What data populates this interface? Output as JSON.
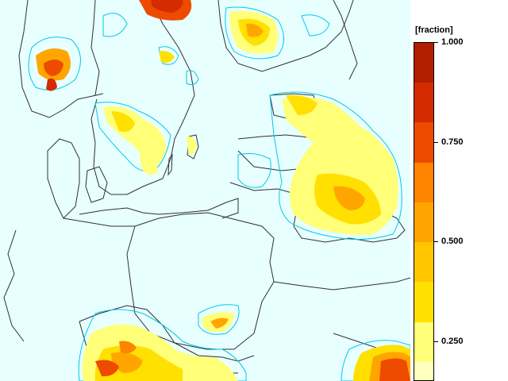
{
  "legend": {
    "unit_label": "[fraction]",
    "ticks": [
      {
        "label": "1.000",
        "value": 1.0
      },
      {
        "label": "0.750",
        "value": 0.75
      },
      {
        "label": "0.500",
        "value": 0.5
      },
      {
        "label": "0.250",
        "value": 0.25
      }
    ],
    "range": [
      0.15,
      1.0
    ],
    "classes": [
      {
        "from": 0.9,
        "to": 1.0,
        "color": "#b21f00"
      },
      {
        "from": 0.8,
        "to": 0.9,
        "color": "#d42c00"
      },
      {
        "from": 0.7,
        "to": 0.8,
        "color": "#ee4a00"
      },
      {
        "from": 0.6,
        "to": 0.7,
        "color": "#ff8400"
      },
      {
        "from": 0.5,
        "to": 0.6,
        "color": "#ffa500"
      },
      {
        "from": 0.4,
        "to": 0.5,
        "color": "#ffc600"
      },
      {
        "from": 0.3,
        "to": 0.4,
        "color": "#ffe000"
      },
      {
        "from": 0.2,
        "to": 0.3,
        "color": "#ffff78"
      },
      {
        "from": 0.15,
        "to": 0.2,
        "color": "#ffffc0"
      }
    ]
  },
  "colors": {
    "background": "#e8ffff",
    "contour": "#00c8e8",
    "border": "#303030"
  }
}
